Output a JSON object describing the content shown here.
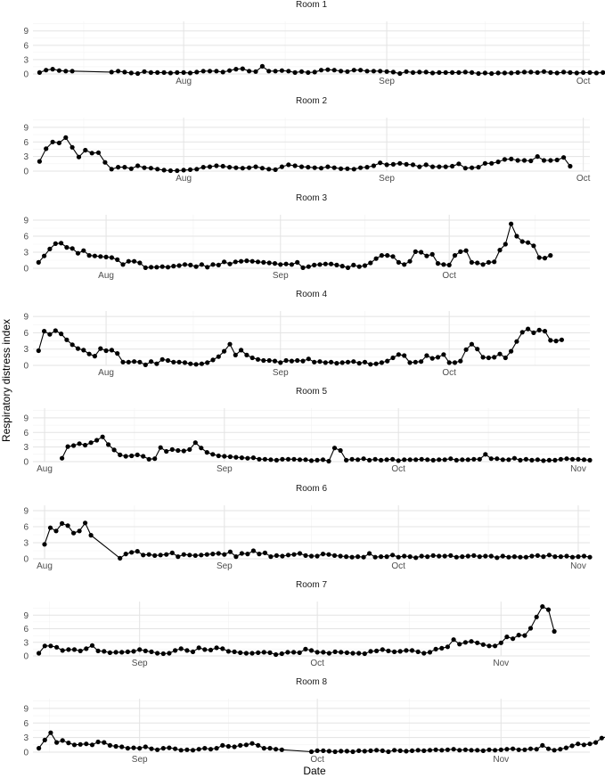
{
  "chart_data": {
    "type": "line",
    "xlabel": "Date",
    "ylabel": "Respiratory distress index",
    "y_ticks": [
      0,
      3,
      6,
      9
    ],
    "grid": true,
    "panels": [
      {
        "title": "Room 1",
        "xlim": [
          "2023-07-09",
          "2023-10-02"
        ],
        "x_ticks": [
          {
            "date": "2023-08-01",
            "label": "Aug"
          },
          {
            "date": "2023-09-01",
            "label": "Sep"
          },
          {
            "date": "2023-10-01",
            "label": "Oct"
          }
        ],
        "ylim": [
          0,
          11
        ],
        "segments": [
          {
            "start": "2023-07-10",
            "values": [
              0.3,
              0.8,
              1.0,
              0.7,
              0.6,
              0.6
            ]
          },
          {
            "start": "2023-07-21",
            "values": [
              0.4,
              0.6,
              0.4,
              0.2,
              0.1,
              0.5,
              0.3,
              0.3,
              0.3,
              0.2,
              0.3,
              0.3,
              0.2,
              0.4,
              0.6,
              0.6,
              0.6,
              0.4,
              0.7,
              1.0,
              1.1,
              0.6,
              0.5,
              1.6,
              0.6,
              0.6,
              0.7,
              0.6,
              0.3,
              0.5,
              0.3,
              0.4,
              0.8,
              0.9,
              0.8,
              0.6,
              0.5,
              0.8,
              0.8,
              0.6,
              0.6,
              0.6,
              0.5,
              0.4,
              0.1,
              0.5,
              0.3,
              0.4,
              0.4,
              0.2,
              0.3,
              0.3,
              0.3,
              0.3,
              0.4,
              0.3,
              0.1,
              0.2,
              0.1,
              0.2,
              0.2,
              0.2,
              0.3,
              0.4,
              0.4,
              0.3,
              0.5,
              0.3,
              0.2,
              0.4,
              0.3,
              0.2,
              0.3,
              0.3,
              0.2,
              0.3,
              0.5,
              0.2
            ]
          }
        ]
      },
      {
        "title": "Room 2",
        "xlim": [
          "2023-07-09",
          "2023-10-02"
        ],
        "x_ticks": [
          {
            "date": "2023-08-01",
            "label": "Aug"
          },
          {
            "date": "2023-09-01",
            "label": "Sep"
          },
          {
            "date": "2023-10-01",
            "label": "Oct"
          }
        ],
        "ylim": [
          0,
          11
        ],
        "segments": [
          {
            "start": "2023-07-10",
            "values": [
              2.0,
              4.6,
              6.0,
              5.8,
              6.9,
              4.9,
              2.9,
              4.3,
              3.7,
              3.8,
              1.8,
              0.4,
              0.8,
              0.8,
              0.5,
              1.1,
              0.7,
              0.6,
              0.4,
              0.2,
              0.1,
              0.1,
              0.2,
              0.3,
              0.4,
              0.8,
              0.9,
              1.1,
              1.0,
              0.8,
              0.7,
              0.6,
              0.7,
              0.9,
              0.6,
              0.4,
              0.3,
              0.9,
              1.3,
              1.1,
              0.9,
              0.8,
              0.7,
              0.6,
              0.9,
              0.7,
              0.5,
              0.5,
              0.4,
              0.7,
              0.8,
              1.1,
              1.7,
              1.3,
              1.4,
              1.6,
              1.4,
              1.3,
              0.9,
              1.3,
              0.9,
              0.9,
              0.9,
              1.0,
              1.5,
              0.6,
              0.7,
              0.8,
              1.6,
              1.6,
              1.9,
              2.4,
              2.5,
              2.2,
              2.2,
              2.1,
              3.0,
              2.2,
              2.2,
              2.3,
              2.8,
              1.0
            ]
          }
        ]
      },
      {
        "title": "Room 3",
        "xlim": [
          "2023-07-19",
          "2023-10-26"
        ],
        "x_ticks": [
          {
            "date": "2023-08-01",
            "label": "Aug"
          },
          {
            "date": "2023-09-01",
            "label": "Sep"
          },
          {
            "date": "2023-10-01",
            "label": "Oct"
          }
        ],
        "ylim": [
          0,
          10
        ],
        "segments": [
          {
            "start": "2023-07-20",
            "values": [
              1.1,
              2.3,
              3.6,
              4.6,
              4.7,
              3.9,
              3.7,
              2.8,
              3.3,
              2.4,
              2.3,
              2.2,
              2.1,
              2.0,
              1.6,
              0.7,
              1.3,
              1.3,
              1.0,
              0.1,
              0.2,
              0.2,
              0.3,
              0.2,
              0.4,
              0.5,
              0.7,
              0.6,
              0.3,
              0.7,
              0.2,
              0.7,
              0.6,
              1.2,
              0.8,
              1.2,
              1.3,
              1.4,
              1.3,
              1.2,
              1.1,
              1.0,
              0.9,
              0.7,
              0.8,
              0.7,
              1.1,
              0.1,
              0.3,
              0.6,
              0.7,
              0.8,
              0.8,
              0.6,
              0.4,
              0.1,
              0.6,
              0.3,
              0.5,
              1.0,
              1.8,
              2.4,
              2.4,
              2.2,
              1.1,
              0.7,
              1.3,
              3.1,
              3.0,
              2.3,
              2.6,
              0.9,
              0.7,
              0.6,
              2.4,
              3.1,
              3.3,
              1.1,
              1.0,
              0.7,
              1.1,
              1.2,
              3.4,
              4.5,
              8.3,
              6.0,
              5.0,
              4.8,
              4.2,
              2.0,
              1.9,
              2.4
            ]
          }
        ]
      },
      {
        "title": "Room 4",
        "xlim": [
          "2023-07-19",
          "2023-10-26"
        ],
        "x_ticks": [
          {
            "date": "2023-08-01",
            "label": "Aug"
          },
          {
            "date": "2023-09-01",
            "label": "Sep"
          },
          {
            "date": "2023-10-01",
            "label": "Oct"
          }
        ],
        "ylim": [
          0,
          10
        ],
        "segments": [
          {
            "start": "2023-07-20",
            "values": [
              2.7,
              6.3,
              5.7,
              6.4,
              5.8,
              4.7,
              3.8,
              3.1,
              2.8,
              2.1,
              1.7,
              3.1,
              2.7,
              2.8,
              2.2,
              0.6,
              0.6,
              0.7,
              0.6,
              0.1,
              0.7,
              0.3,
              1.1,
              0.9,
              0.6,
              0.6,
              0.5,
              0.3,
              0.2,
              0.3,
              0.5,
              1.0,
              1.6,
              2.6,
              3.9,
              1.9,
              2.8,
              1.9,
              1.4,
              1.1,
              0.9,
              0.9,
              0.8,
              0.5,
              0.9,
              0.8,
              0.9,
              0.8,
              1.2,
              0.6,
              0.7,
              0.5,
              0.6,
              0.4,
              0.5,
              0.6,
              0.7,
              0.4,
              0.6,
              0.2,
              0.3,
              0.5,
              0.8,
              1.4,
              2.0,
              1.8,
              0.5,
              0.6,
              0.7,
              1.8,
              1.3,
              1.5,
              2.0,
              0.5,
              0.5,
              0.8,
              2.9,
              3.9,
              3.0,
              1.5,
              1.4,
              1.5,
              2.1,
              1.4,
              2.6,
              4.4,
              6.1,
              6.7,
              6.0,
              6.5,
              6.3,
              4.6,
              4.5,
              4.7
            ]
          }
        ]
      },
      {
        "title": "Room 5",
        "xlim": [
          "2023-07-30",
          "2023-11-03"
        ],
        "x_ticks": [
          {
            "date": "2023-08-01",
            "label": "Aug"
          },
          {
            "date": "2023-09-01",
            "label": "Sep"
          },
          {
            "date": "2023-10-01",
            "label": "Oct"
          },
          {
            "date": "2023-11-01",
            "label": "Nov"
          }
        ],
        "ylim": [
          0,
          11
        ],
        "segments": [
          {
            "start": "2023-08-04",
            "values": [
              0.7,
              3.1,
              3.3,
              3.7,
              3.4,
              3.9,
              4.4,
              5.1,
              3.5,
              2.4,
              1.4,
              1.1,
              1.2,
              1.4,
              1.1,
              0.5,
              0.6,
              2.9,
              2.1,
              2.5,
              2.3,
              2.2,
              2.5,
              3.9,
              2.8,
              1.9,
              1.5,
              1.2,
              1.1,
              1.0,
              0.9,
              0.8,
              0.7,
              0.8,
              0.5,
              0.5,
              0.4,
              0.3,
              0.5,
              0.5,
              0.5,
              0.4,
              0.4,
              0.2,
              0.3,
              0.4,
              0.1,
              2.8,
              2.3,
              0.3,
              0.5,
              0.4,
              0.6,
              0.3,
              0.5,
              0.3,
              0.4,
              0.5,
              0.2,
              0.4,
              0.4,
              0.4,
              0.5,
              0.4,
              0.3,
              0.4,
              0.4,
              0.6,
              0.3,
              0.4,
              0.4,
              0.5,
              0.5,
              1.5,
              0.6,
              0.6,
              0.4,
              0.4,
              0.7,
              0.3,
              0.5,
              0.3,
              0.4,
              0.2,
              0.3,
              0.3,
              0.5,
              0.6,
              0.5,
              0.5,
              0.4,
              0.3
            ]
          }
        ]
      },
      {
        "title": "Room 6",
        "xlim": [
          "2023-07-30",
          "2023-11-03"
        ],
        "x_ticks": [
          {
            "date": "2023-08-01",
            "label": "Aug"
          },
          {
            "date": "2023-09-01",
            "label": "Sep"
          },
          {
            "date": "2023-10-01",
            "label": "Oct"
          },
          {
            "date": "2023-11-01",
            "label": "Nov"
          }
        ],
        "ylim": [
          0,
          10
        ],
        "segments": [
          {
            "start": "2023-08-01",
            "values": [
              2.7,
              5.8,
              5.2,
              6.6,
              6.2,
              4.8,
              5.2,
              6.7,
              4.4
            ]
          },
          {
            "start": "2023-08-14",
            "values": [
              0.1,
              0.9,
              1.2,
              1.4,
              0.7,
              0.8,
              0.6,
              0.7,
              0.8,
              1.1,
              0.4,
              0.8,
              0.7,
              0.6,
              0.7,
              0.8,
              0.9,
              1.0,
              0.8,
              1.3,
              0.4,
              1.0,
              0.9,
              1.5,
              0.9,
              1.1,
              0.4,
              0.6,
              0.5,
              0.7,
              0.8,
              1.0,
              0.6,
              0.5,
              0.5,
              0.9,
              0.8,
              0.6,
              0.5,
              0.4,
              0.3,
              0.4,
              0.3,
              1.0,
              0.3,
              0.4,
              0.4,
              0.7,
              0.3,
              0.5,
              0.4,
              0.2,
              0.5,
              0.4,
              0.6,
              0.5,
              0.5,
              0.6,
              0.3,
              0.4,
              0.5,
              0.6,
              0.4,
              0.5,
              0.5,
              0.2,
              0.5,
              0.3,
              0.4,
              0.3,
              0.3,
              0.5,
              0.6,
              0.4,
              0.7,
              0.4,
              0.4,
              0.5,
              0.3,
              0.4,
              0.5,
              0.3
            ]
          }
        ]
      },
      {
        "title": "Room 7",
        "xlim": [
          "2023-08-14",
          "2023-11-16"
        ],
        "x_ticks": [
          {
            "date": "2023-09-01",
            "label": "Sep"
          },
          {
            "date": "2023-10-01",
            "label": "Oct"
          },
          {
            "date": "2023-11-01",
            "label": "Nov"
          }
        ],
        "ylim": [
          0,
          12
        ],
        "segments": [
          {
            "start": "2023-08-15",
            "values": [
              0.6,
              2.2,
              2.2,
              1.9,
              1.2,
              1.4,
              1.4,
              1.1,
              1.6,
              2.3,
              1.1,
              1.0,
              0.7,
              0.8,
              0.8,
              0.9,
              1.0,
              1.4,
              1.1,
              0.9,
              0.6,
              0.5,
              0.6,
              1.2,
              1.6,
              1.2,
              0.9,
              1.8,
              1.4,
              1.3,
              1.8,
              1.6,
              1.0,
              0.9,
              0.7,
              0.6,
              0.6,
              0.7,
              0.8,
              0.7,
              0.3,
              0.5,
              0.8,
              0.8,
              0.7,
              1.5,
              1.2,
              0.8,
              0.8,
              0.6,
              0.9,
              0.8,
              0.7,
              0.6,
              0.6,
              0.5,
              1.0,
              1.1,
              1.4,
              1.1,
              0.9,
              1.0,
              1.2,
              1.2,
              0.9,
              0.6,
              0.8,
              1.5,
              1.7,
              2.0,
              3.6,
              2.6,
              3.0,
              3.2,
              2.9,
              2.5,
              2.2,
              2.2,
              2.9,
              4.2,
              3.8,
              4.6,
              4.5,
              6.1,
              8.6,
              10.9,
              10.2,
              5.4
            ]
          }
        ]
      },
      {
        "title": "Room 8",
        "xlim": [
          "2023-08-14",
          "2023-11-16"
        ],
        "x_ticks": [
          {
            "date": "2023-09-01",
            "label": "Sep"
          },
          {
            "date": "2023-10-01",
            "label": "Oct"
          },
          {
            "date": "2023-11-01",
            "label": "Nov"
          }
        ],
        "ylim": [
          0,
          11
        ],
        "segments": [
          {
            "start": "2023-08-15",
            "values": [
              0.8,
              2.5,
              4.0,
              2.0,
              2.4,
              1.9,
              1.5,
              1.6,
              1.7,
              1.5,
              2.1,
              2.0,
              1.4,
              1.2,
              1.1,
              0.8,
              0.9,
              0.8,
              1.1,
              0.7,
              0.5,
              0.8,
              0.9,
              0.7,
              0.4,
              0.5,
              0.4,
              0.6,
              0.8,
              0.6,
              0.8,
              1.4,
              1.2,
              1.1,
              1.4,
              1.5,
              1.8,
              1.4,
              0.8,
              0.8,
              0.6,
              0.5
            ]
          },
          {
            "start": "2023-09-30",
            "values": [
              0.1,
              0.3,
              0.3,
              0.2,
              0.1,
              0.2,
              0.2,
              0.1,
              0.3,
              0.2,
              0.3,
              0.4,
              0.3,
              0.1,
              0.4,
              0.3,
              0.2,
              0.3,
              0.4,
              0.3,
              0.4,
              0.5,
              0.4,
              0.5,
              0.6,
              0.4,
              0.5,
              0.4,
              0.4,
              0.3,
              0.5,
              0.4,
              0.5,
              0.6,
              0.7,
              0.5,
              0.5,
              0.7,
              0.6,
              1.4,
              0.7,
              0.4,
              0.6,
              0.9,
              1.3,
              1.7,
              1.5,
              1.7,
              2.0,
              2.9,
              3.2,
              2.6,
              2.2,
              1.1
            ]
          }
        ]
      }
    ]
  }
}
